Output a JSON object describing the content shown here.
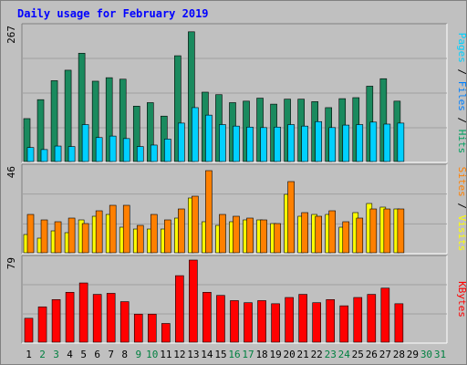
{
  "title": "Daily usage for February 2019",
  "colors": {
    "pages": "#008060",
    "files": "#00d0ff",
    "hits": "#00c000",
    "visits": "#ffff00",
    "sites": "#ff8000",
    "kbytes": "#ff0000",
    "weekend_label": "#008040",
    "weekday_label": "#000000",
    "panel": "#c0c0c0",
    "grid": "#808080",
    "title": "#0000ff"
  },
  "chart_data": [
    {
      "type": "bar",
      "panel": "hits",
      "max_label": "267",
      "ylim": [
        0,
        267
      ],
      "right_label": [
        {
          "text": "Pages",
          "color": "#00d0ff"
        },
        {
          "text": " / ",
          "color": "#000000"
        },
        {
          "text": "Files",
          "color": "#0080ff"
        },
        {
          "text": " / ",
          "color": "#000000"
        },
        {
          "text": "Hits",
          "color": "#00a060"
        }
      ],
      "categories": [
        "1",
        "2",
        "3",
        "4",
        "5",
        "6",
        "7",
        "8",
        "9",
        "10",
        "11",
        "12",
        "13",
        "14",
        "15",
        "16",
        "17",
        "18",
        "19",
        "20",
        "21",
        "22",
        "23",
        "24",
        "25",
        "26",
        "27",
        "28",
        "29",
        "30",
        "31"
      ],
      "series": [
        {
          "name": "Hits",
          "color": "#1a8a5e",
          "values": [
            86,
            124,
            162,
            183,
            217,
            161,
            168,
            165,
            111,
            118,
            91,
            212,
            260,
            139,
            134,
            118,
            121,
            127,
            115,
            125,
            125,
            120,
            108,
            126,
            128,
            151,
            166,
            121,
            0,
            0,
            0
          ]
        },
        {
          "name": "Files",
          "color": "#00d0ff",
          "values": [
            28,
            24,
            31,
            30,
            74,
            48,
            51,
            46,
            30,
            33,
            45,
            77,
            108,
            93,
            74,
            71,
            69,
            68,
            69,
            74,
            71,
            80,
            68,
            73,
            74,
            79,
            75,
            77,
            0,
            0,
            0
          ]
        },
        {
          "name": "Pages",
          "color": "#00d0ff",
          "values": [
            0,
            0,
            0,
            0,
            0,
            0,
            0,
            0,
            0,
            0,
            0,
            0,
            0,
            0,
            0,
            0,
            0,
            0,
            0,
            0,
            0,
            0,
            0,
            0,
            0,
            0,
            0,
            0,
            0,
            0,
            0
          ]
        }
      ]
    },
    {
      "type": "bar",
      "panel": "visits",
      "max_label": "46",
      "ylim": [
        0,
        46
      ],
      "right_label": [
        {
          "text": "Sites",
          "color": "#ff8000"
        },
        {
          "text": " / ",
          "color": "#000000"
        },
        {
          "text": "Visits",
          "color": "#ffff00"
        }
      ],
      "categories": [
        "1",
        "2",
        "3",
        "4",
        "5",
        "6",
        "7",
        "8",
        "9",
        "10",
        "11",
        "12",
        "13",
        "14",
        "15",
        "16",
        "17",
        "18",
        "19",
        "20",
        "21",
        "22",
        "23",
        "24",
        "25",
        "26",
        "27",
        "28",
        "29",
        "30",
        "31"
      ],
      "series": [
        {
          "name": "Visits",
          "color": "#ffff00",
          "values": [
            10,
            8,
            12,
            11,
            18,
            20,
            21,
            14,
            13,
            13,
            13,
            19,
            30,
            17,
            15,
            17,
            18,
            18,
            16,
            32,
            20,
            21,
            21,
            14,
            22,
            27,
            25,
            24,
            0,
            0,
            0
          ]
        },
        {
          "name": "Sites",
          "color": "#ff8000",
          "values": [
            21,
            18,
            17,
            19,
            16,
            23,
            26,
            26,
            15,
            21,
            18,
            24,
            31,
            45,
            21,
            20,
            19,
            18,
            16,
            39,
            22,
            20,
            23,
            17,
            19,
            24,
            24,
            24,
            0,
            0,
            0
          ]
        }
      ]
    },
    {
      "type": "bar",
      "panel": "kbytes",
      "max_label": "79",
      "ylim": [
        0,
        79
      ],
      "right_label": [
        {
          "text": "KBytes",
          "color": "#ff0000"
        }
      ],
      "categories": [
        "1",
        "2",
        "3",
        "4",
        "5",
        "6",
        "7",
        "8",
        "9",
        "10",
        "11",
        "12",
        "13",
        "14",
        "15",
        "16",
        "17",
        "18",
        "19",
        "20",
        "21",
        "22",
        "23",
        "24",
        "25",
        "26",
        "27",
        "28",
        "29",
        "30",
        "31"
      ],
      "series": [
        {
          "name": "KBytes",
          "color": "#ff0000",
          "values": [
            23,
            34,
            41,
            48,
            57,
            46,
            47,
            39,
            27,
            27,
            18,
            64,
            79,
            48,
            45,
            40,
            38,
            40,
            37,
            43,
            46,
            38,
            41,
            35,
            43,
            46,
            52,
            37,
            0,
            0,
            0
          ]
        }
      ]
    }
  ],
  "x_labels": [
    "1",
    "2",
    "3",
    "4",
    "5",
    "6",
    "7",
    "8",
    "9",
    "10",
    "11",
    "12",
    "13",
    "14",
    "15",
    "16",
    "17",
    "18",
    "19",
    "20",
    "21",
    "22",
    "23",
    "24",
    "25",
    "26",
    "27",
    "28",
    "29",
    "30",
    "31"
  ],
  "weekend_days": [
    "2",
    "3",
    "9",
    "10",
    "16",
    "17",
    "23",
    "24",
    "30",
    "31"
  ]
}
